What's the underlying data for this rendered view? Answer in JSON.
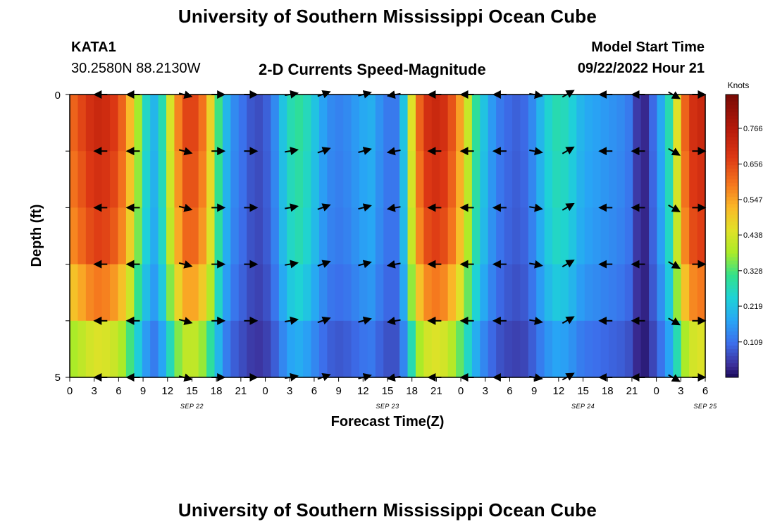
{
  "header": {
    "title": "University of Southern Mississippi Ocean Cube",
    "station_id": "KATA1",
    "station_coords": "30.2580N  88.2130W",
    "chart_title": "2-D Currents Speed-Magnitude",
    "model_start_label": "Model Start Time",
    "model_start_value": "09/22/2022 Hour 21"
  },
  "footer": {
    "title": "University of Southern Mississippi Ocean Cube"
  },
  "chart_data": {
    "type": "heatmap",
    "title": "2-D Currents Speed-Magnitude",
    "xlabel": "Forecast Time(Z)",
    "ylabel": "Depth (ft)",
    "units_label": "Knots",
    "x_tick_labels": [
      "0",
      "3",
      "6",
      "9",
      "12",
      "15",
      "18",
      "21",
      "0",
      "3",
      "6",
      "9",
      "12",
      "15",
      "18",
      "21",
      "0",
      "3",
      "6",
      "9",
      "12",
      "15",
      "18",
      "21",
      "0",
      "3",
      "6"
    ],
    "date_labels": [
      {
        "text": "SEP 22",
        "hour": 15
      },
      {
        "text": "SEP 23",
        "hour": 39
      },
      {
        "text": "SEP 24",
        "hour": 63
      },
      {
        "text": "SEP 25",
        "hour": 78
      }
    ],
    "y_tick_labels": [
      "0",
      "5"
    ],
    "depth_range": [
      0,
      5
    ],
    "hours_range": [
      0,
      78
    ],
    "colorbar_ticks": [
      0.766,
      0.656,
      0.547,
      0.438,
      0.328,
      0.219,
      0.109
    ],
    "colorbar_range": [
      0.0,
      0.87
    ],
    "depth_rows": 5,
    "surface_speed_knots": [
      0.62,
      0.66,
      0.7,
      0.72,
      0.71,
      0.68,
      0.62,
      0.52,
      0.38,
      0.26,
      0.2,
      0.28,
      0.44,
      0.58,
      0.66,
      0.66,
      0.6,
      0.48,
      0.32,
      0.2,
      0.14,
      0.11,
      0.08,
      0.07,
      0.09,
      0.14,
      0.22,
      0.28,
      0.3,
      0.27,
      0.22,
      0.17,
      0.14,
      0.13,
      0.14,
      0.16,
      0.18,
      0.19,
      0.15,
      0.12,
      0.12,
      0.22,
      0.45,
      0.62,
      0.7,
      0.72,
      0.7,
      0.64,
      0.55,
      0.42,
      0.3,
      0.22,
      0.16,
      0.12,
      0.1,
      0.09,
      0.1,
      0.14,
      0.2,
      0.25,
      0.28,
      0.27,
      0.24,
      0.2,
      0.18,
      0.17,
      0.16,
      0.15,
      0.14,
      0.12,
      0.05,
      0.03,
      0.1,
      0.18,
      0.28,
      0.45,
      0.62,
      0.7,
      0.72
    ],
    "depth_factors": [
      1.0,
      1.0,
      0.97,
      0.93,
      0.82,
      0.62
    ],
    "vectors": {
      "hours": [
        4,
        8,
        14,
        18,
        22,
        27,
        31,
        36,
        40,
        45,
        49,
        53,
        57,
        61,
        66,
        70,
        74,
        77
      ],
      "angles_deg": [
        180,
        180,
        -15,
        0,
        0,
        10,
        20,
        15,
        190,
        180,
        180,
        180,
        -10,
        30,
        180,
        180,
        -30,
        0
      ]
    }
  }
}
